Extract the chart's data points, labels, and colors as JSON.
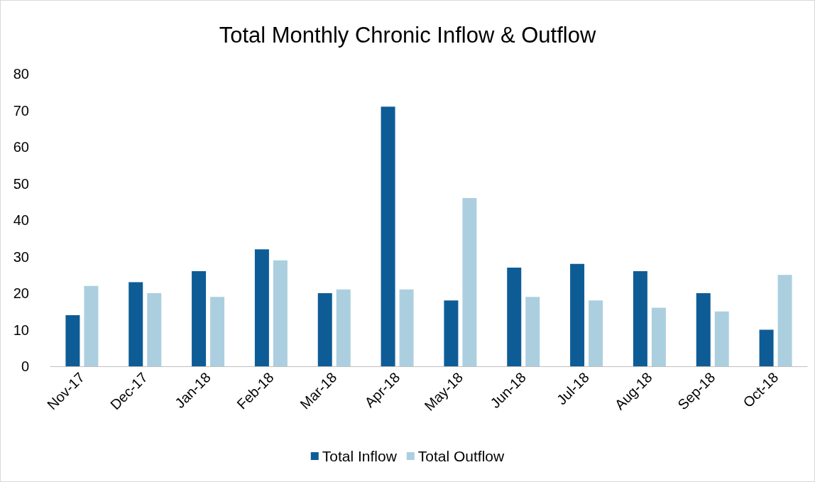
{
  "chart_data": {
    "type": "bar",
    "title": "Total Monthly Chronic Inflow & Outflow",
    "categories": [
      "Nov-17",
      "Dec-17",
      "Jan-18",
      "Feb-18",
      "Mar-18",
      "Apr-18",
      "May-18",
      "Jun-18",
      "Jul-18",
      "Aug-18",
      "Sep-18",
      "Oct-18"
    ],
    "series": [
      {
        "name": "Total Inflow",
        "color": "#0e5c96",
        "values": [
          14,
          23,
          26,
          32,
          20,
          71,
          18,
          27,
          28,
          26,
          20,
          10
        ]
      },
      {
        "name": "Total Outflow",
        "color": "#abcfdf",
        "values": [
          22,
          20,
          19,
          29,
          21,
          21,
          46,
          19,
          18,
          16,
          15,
          25
        ]
      }
    ],
    "ylim": [
      0,
      80
    ],
    "yticks": [
      0,
      10,
      20,
      30,
      40,
      50,
      60,
      70,
      80
    ],
    "grid": false,
    "legend": "bottom"
  }
}
